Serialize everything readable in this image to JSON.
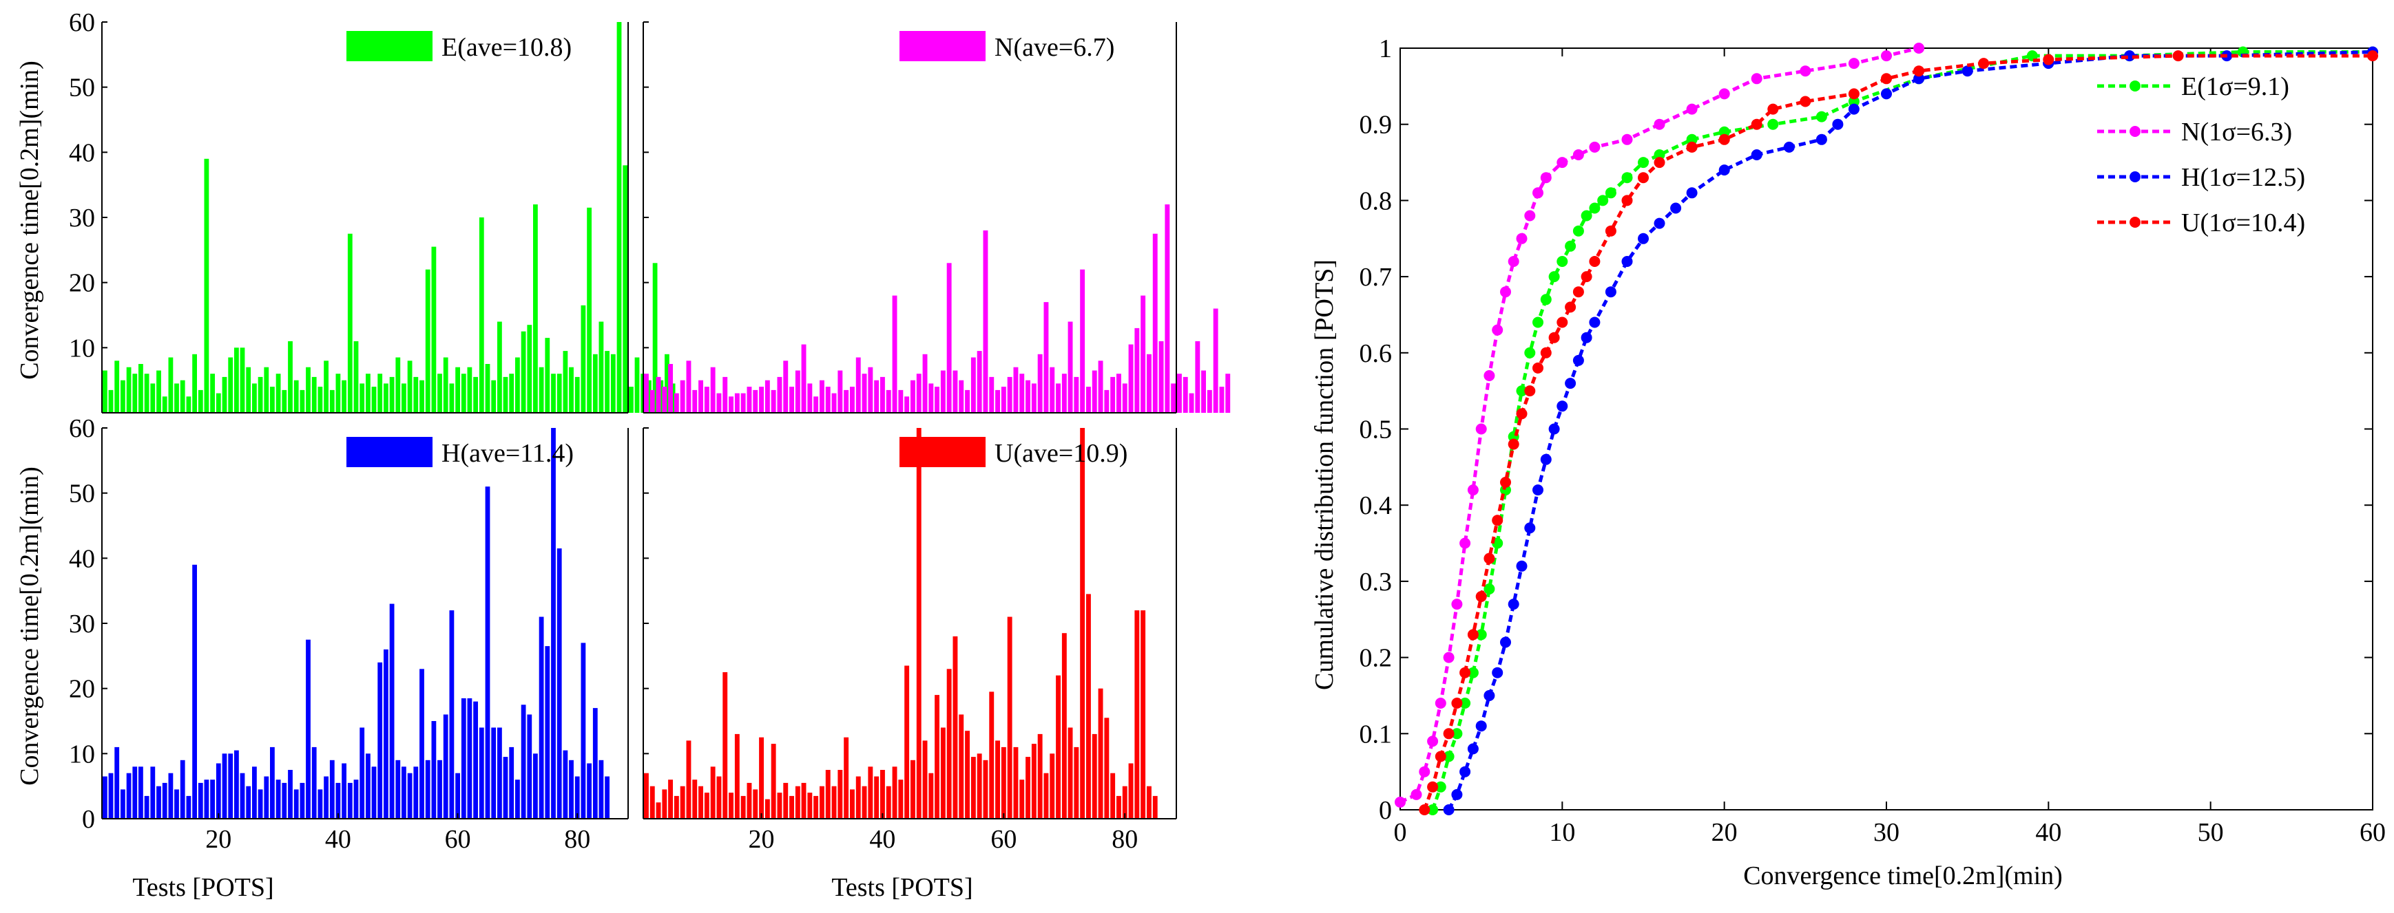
{
  "colors": {
    "E": "#00ff00",
    "N": "#ff00ff",
    "H": "#0000ff",
    "U": "#ff0000",
    "axis": "#000000"
  },
  "chart_data": [
    {
      "type": "bar",
      "id": "E",
      "legend": "E(ave=10.8)",
      "color": "#00ff00",
      "xlabel": "",
      "ylabel": "",
      "ylim": [
        0,
        60
      ],
      "yticks": [
        "10",
        "20",
        "30",
        "40",
        "50",
        "60"
      ],
      "xticks": [],
      "values": [
        6.5,
        3.5,
        8,
        5,
        7,
        6,
        7.5,
        6,
        4.5,
        6.5,
        2.5,
        8.5,
        4.5,
        5,
        2.5,
        9,
        3.5,
        39,
        6,
        3,
        5.5,
        8.5,
        10,
        10,
        7,
        4.5,
        5.5,
        7,
        4,
        6,
        3.5,
        11,
        5,
        3.5,
        7,
        5.5,
        4,
        8,
        3.5,
        6,
        5,
        27.5,
        11,
        4.5,
        6,
        4,
        6,
        4.5,
        5.5,
        8.5,
        4.5,
        8,
        5.5,
        5,
        22,
        25.5,
        6,
        8.5,
        4.5,
        7,
        6,
        7,
        5.5,
        30,
        7.5,
        5,
        14,
        5.5,
        6,
        8.5,
        12.5,
        13.5,
        32,
        7,
        11.5,
        6,
        6,
        9.5,
        7,
        5.5,
        16.5,
        31.5,
        9,
        14,
        9.5,
        9,
        60,
        38,
        4,
        8.5,
        6,
        5,
        23,
        5,
        9,
        4.5
      ]
    },
    {
      "type": "bar",
      "id": "N",
      "legend": "N(ave=6.7)",
      "color": "#ff00ff",
      "xlabel": "",
      "ylabel": "",
      "ylim": [
        0,
        60
      ],
      "yticks": [],
      "xticks": [],
      "values": [
        6,
        3.5,
        5.5,
        4,
        7.5,
        3,
        5,
        8,
        3.5,
        5,
        4,
        7,
        3,
        5.5,
        2.5,
        3,
        3,
        4,
        3.5,
        4,
        5,
        3.5,
        5.5,
        8,
        4,
        6.5,
        10.5,
        4.5,
        2.5,
        5,
        4,
        3,
        6.5,
        3.5,
        4,
        8.5,
        6,
        7,
        5,
        5.5,
        3.5,
        18,
        3.5,
        2.5,
        5,
        6,
        9,
        4.5,
        4,
        6.5,
        23,
        6.5,
        5,
        3.5,
        8.5,
        9.5,
        28,
        5.5,
        3.5,
        4,
        5.5,
        7,
        6,
        5,
        4.5,
        9,
        17,
        7,
        4.5,
        6,
        14,
        5.5,
        22,
        4,
        6.5,
        8,
        3.5,
        5.5,
        6,
        4.5,
        10.5,
        13,
        18,
        9,
        27.5,
        11,
        32,
        4.5,
        6,
        5.5,
        3,
        11,
        6.5,
        3.5,
        16,
        4,
        6
      ]
    },
    {
      "type": "bar",
      "id": "H",
      "legend": "H(ave=11.4)",
      "color": "#0000ff",
      "xlabel": "Tests [POTS]",
      "ylabel": "",
      "ylim": [
        0,
        60
      ],
      "yticks": [
        "0",
        "10",
        "20",
        "30",
        "40",
        "50",
        "60"
      ],
      "xticks": [
        "20",
        "40",
        "60",
        "80"
      ],
      "values": [
        6.5,
        7,
        11,
        4.5,
        7,
        8,
        8,
        3.5,
        8,
        5,
        5.5,
        7,
        4.5,
        9,
        3.5,
        39,
        5.5,
        6,
        6,
        8.5,
        10,
        10,
        10.5,
        7,
        5,
        8,
        4.5,
        6.5,
        11,
        6,
        5.5,
        7.5,
        4.5,
        5.5,
        27.5,
        11,
        4.5,
        6.5,
        9,
        5.5,
        8.5,
        5.5,
        6,
        14,
        10,
        8,
        24,
        26,
        33,
        9,
        8,
        7,
        8,
        23,
        9,
        15,
        9,
        16,
        32,
        7,
        18.5,
        18.5,
        18,
        14,
        51,
        14,
        14,
        9.5,
        11,
        6,
        17.5,
        16,
        10,
        31,
        26.5,
        60,
        41.5,
        10.5,
        9,
        6.5,
        27,
        8.5,
        17,
        9,
        6.5
      ]
    },
    {
      "type": "bar",
      "id": "U",
      "legend": "U(ave=10.9)",
      "color": "#ff0000",
      "xlabel": "Tests [POTS]",
      "ylabel": "",
      "ylim": [
        0,
        60
      ],
      "yticks": [],
      "xticks": [
        "20",
        "40",
        "60",
        "80"
      ],
      "values": [
        7,
        5,
        2.5,
        4.5,
        6,
        3.5,
        5,
        12,
        6,
        5,
        4,
        8,
        6.5,
        22.5,
        4,
        13,
        3.5,
        5.5,
        4.5,
        12.5,
        3,
        11.5,
        4,
        5.5,
        3.5,
        5,
        5.5,
        4,
        3.5,
        5,
        7.5,
        5,
        7.5,
        12.5,
        4.5,
        6.5,
        5,
        8,
        6.5,
        7.5,
        5,
        8,
        6,
        23.5,
        9,
        60,
        12,
        7,
        19,
        14,
        23,
        28,
        16,
        13.5,
        9.5,
        10,
        9,
        19.5,
        12,
        11,
        31,
        11,
        6,
        9.5,
        11.5,
        13,
        7,
        10,
        22,
        28.5,
        14,
        11,
        60,
        34.5,
        13,
        20,
        15.5,
        7,
        3.5,
        5,
        8.5,
        32,
        32,
        5,
        3.5
      ]
    },
    {
      "type": "line",
      "id": "cdf",
      "title": "",
      "xlabel": "Convergence time[0.2m](min)",
      "ylabel": "Cumulative distribution function [POTS]",
      "xlim": [
        0,
        60
      ],
      "ylim": [
        0,
        1
      ],
      "xticks": [
        "0",
        "10",
        "20",
        "30",
        "40",
        "50",
        "60"
      ],
      "yticks": [
        "0",
        "0.1",
        "0.2",
        "0.3",
        "0.4",
        "0.5",
        "0.6",
        "0.7",
        "0.8",
        "0.9",
        "1"
      ],
      "legend_position": "top-right",
      "series": [
        {
          "name": "E(1σ=9.1)",
          "color": "#00ff00",
          "x": [
            2,
            2.5,
            3,
            3.5,
            4,
            4.5,
            5,
            5.5,
            6,
            6.5,
            7,
            7.5,
            8,
            8.5,
            9,
            9.5,
            10,
            10.5,
            11,
            11.5,
            12,
            12.5,
            13,
            14,
            15,
            16,
            18,
            20,
            23,
            26,
            28,
            32,
            39,
            45,
            52,
            60
          ],
          "y": [
            0,
            0.03,
            0.07,
            0.1,
            0.14,
            0.18,
            0.23,
            0.29,
            0.35,
            0.42,
            0.49,
            0.55,
            0.6,
            0.64,
            0.67,
            0.7,
            0.72,
            0.74,
            0.76,
            0.78,
            0.79,
            0.8,
            0.81,
            0.83,
            0.85,
            0.86,
            0.88,
            0.89,
            0.9,
            0.91,
            0.93,
            0.96,
            0.99,
            0.99,
            0.995,
            0.995
          ]
        },
        {
          "name": "N(1σ=6.3)",
          "color": "#ff00ff",
          "x": [
            0,
            1,
            1.5,
            2,
            2.5,
            3,
            3.5,
            4,
            4.5,
            5,
            5.5,
            6,
            6.5,
            7,
            7.5,
            8,
            8.5,
            9,
            10,
            11,
            12,
            14,
            16,
            18,
            20,
            22,
            25,
            28,
            30,
            32
          ],
          "y": [
            0.01,
            0.02,
            0.05,
            0.09,
            0.14,
            0.2,
            0.27,
            0.35,
            0.42,
            0.5,
            0.57,
            0.63,
            0.68,
            0.72,
            0.75,
            0.78,
            0.81,
            0.83,
            0.85,
            0.86,
            0.87,
            0.88,
            0.9,
            0.92,
            0.94,
            0.96,
            0.97,
            0.98,
            0.99,
            1
          ]
        },
        {
          "name": "H(1σ=12.5)",
          "color": "#0000ff",
          "x": [
            3,
            3.5,
            4,
            4.5,
            5,
            5.5,
            6,
            6.5,
            7,
            7.5,
            8,
            8.5,
            9,
            9.5,
            10,
            10.5,
            11,
            11.5,
            12,
            13,
            14,
            15,
            16,
            17,
            18,
            20,
            22,
            24,
            26,
            27,
            28,
            30,
            32,
            35,
            40,
            45,
            51,
            60
          ],
          "y": [
            0,
            0.02,
            0.05,
            0.08,
            0.11,
            0.15,
            0.18,
            0.22,
            0.27,
            0.32,
            0.37,
            0.42,
            0.46,
            0.5,
            0.53,
            0.56,
            0.59,
            0.62,
            0.64,
            0.68,
            0.72,
            0.75,
            0.77,
            0.79,
            0.81,
            0.84,
            0.86,
            0.87,
            0.88,
            0.9,
            0.92,
            0.94,
            0.96,
            0.97,
            0.98,
            0.99,
            0.99,
            0.995
          ]
        },
        {
          "name": "U(1σ=10.4)",
          "color": "#ff0000",
          "x": [
            1.5,
            2,
            2.5,
            3,
            3.5,
            4,
            4.5,
            5,
            5.5,
            6,
            6.5,
            7,
            7.5,
            8,
            8.5,
            9,
            9.5,
            10,
            10.5,
            11,
            11.5,
            12,
            13,
            14,
            15,
            16,
            18,
            20,
            22,
            23,
            25,
            28,
            30,
            32,
            36,
            40,
            48,
            60
          ],
          "y": [
            0,
            0.03,
            0.07,
            0.1,
            0.14,
            0.18,
            0.23,
            0.28,
            0.33,
            0.38,
            0.43,
            0.48,
            0.52,
            0.55,
            0.58,
            0.6,
            0.62,
            0.64,
            0.66,
            0.68,
            0.7,
            0.72,
            0.76,
            0.8,
            0.83,
            0.85,
            0.87,
            0.88,
            0.9,
            0.92,
            0.93,
            0.94,
            0.96,
            0.97,
            0.98,
            0.985,
            0.99,
            0.99
          ]
        }
      ]
    }
  ]
}
